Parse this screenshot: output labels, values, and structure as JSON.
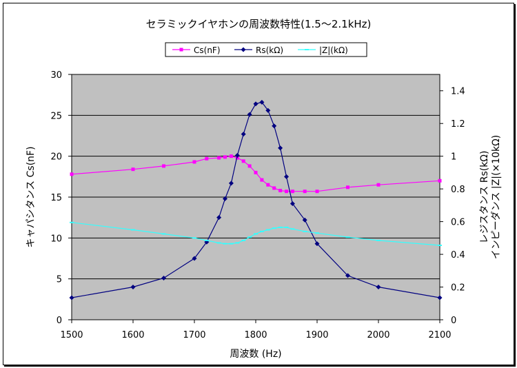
{
  "chart_data": {
    "type": "line",
    "title": "セラミックイヤホンの周波数特性(1.5～2.1kHz)",
    "xlabel": "周波数 (Hz)",
    "ylabel_left": "キャパシタンス Cs(nF)",
    "ylabel_right": [
      "レジスタンス Rs(kΩ)",
      "インピーダンス |Z|(×10kΩ)"
    ],
    "xlim": [
      1500,
      2100
    ],
    "x_ticks": [
      "1500",
      "1600",
      "1700",
      "1800",
      "1900",
      "2000",
      "2100"
    ],
    "ylim_left": [
      0,
      30
    ],
    "y_ticks_left": [
      "0",
      "5",
      "10",
      "15",
      "20",
      "25",
      "30"
    ],
    "ylim_right": [
      0,
      1.5
    ],
    "y_ticks_right": [
      "0",
      "0.2",
      "0.4",
      "0.6",
      "0.8",
      "1",
      "1.2",
      "1.4"
    ],
    "grid": true,
    "plot_background": "#c0c0c0",
    "legend_position": "top",
    "series": [
      {
        "name": "Cs(nF)",
        "axis": "left",
        "color": "#ff00ff",
        "marker": "square",
        "x": [
          1500,
          1600,
          1650,
          1700,
          1720,
          1740,
          1750,
          1760,
          1770,
          1780,
          1790,
          1800,
          1810,
          1820,
          1830,
          1840,
          1850,
          1860,
          1880,
          1900,
          1950,
          2000,
          2100
        ],
        "y": [
          17.8,
          18.4,
          18.8,
          19.3,
          19.7,
          19.8,
          19.9,
          20.0,
          19.8,
          19.4,
          18.8,
          18.0,
          17.1,
          16.5,
          16.1,
          15.8,
          15.7,
          15.7,
          15.7,
          15.7,
          16.2,
          16.5,
          17.0
        ]
      },
      {
        "name": "Rs(kΩ)",
        "axis": "right",
        "color": "#000080",
        "marker": "diamond",
        "x": [
          1500,
          1600,
          1650,
          1700,
          1720,
          1740,
          1750,
          1760,
          1770,
          1780,
          1790,
          1800,
          1810,
          1820,
          1830,
          1840,
          1850,
          1860,
          1880,
          1900,
          1950,
          2000,
          2100
        ],
        "y": [
          0.135,
          0.2,
          0.255,
          0.375,
          0.475,
          0.625,
          0.74,
          0.835,
          1.005,
          1.135,
          1.255,
          1.32,
          1.33,
          1.28,
          1.185,
          1.05,
          0.875,
          0.71,
          0.61,
          0.465,
          0.27,
          0.2,
          0.135
        ]
      },
      {
        "name": "|Z|(kΩ)",
        "axis": "left",
        "color": "#33ffff",
        "marker": "dash",
        "x": [
          1500,
          1600,
          1650,
          1700,
          1720,
          1740,
          1750,
          1760,
          1770,
          1780,
          1790,
          1800,
          1810,
          1820,
          1830,
          1840,
          1850,
          1860,
          1880,
          1900,
          1950,
          2000,
          2100
        ],
        "y": [
          11.9,
          11.0,
          10.5,
          10.0,
          9.7,
          9.4,
          9.3,
          9.3,
          9.4,
          9.7,
          10.1,
          10.5,
          10.8,
          11.0,
          11.2,
          11.3,
          11.3,
          11.1,
          10.8,
          10.6,
          10.1,
          9.7,
          9.1
        ]
      }
    ]
  }
}
